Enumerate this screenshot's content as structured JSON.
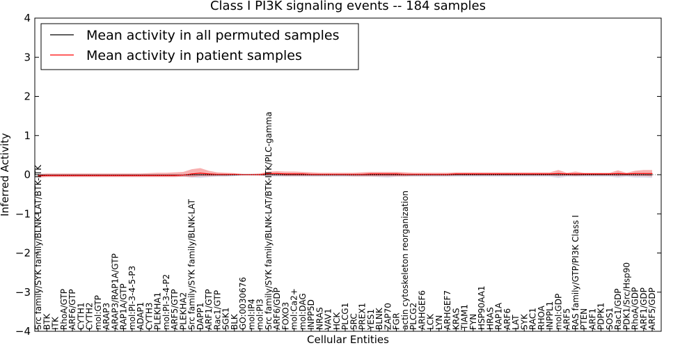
{
  "chart_data": {
    "type": "line",
    "title": "Class I PI3K signaling events -- 184 samples",
    "xlabel": "Cellular Entities",
    "ylabel": "Inferred Activity",
    "ylim": [
      -4,
      4
    ],
    "yticks": [
      "−4",
      "−3",
      "−2",
      "−1",
      "0",
      "1",
      "2",
      "3",
      "4"
    ],
    "legend": {
      "placement": "top-left",
      "entries": [
        {
          "label": "Mean activity in all permuted samples",
          "color": "#000000"
        },
        {
          "label": "Mean activity in patient samples",
          "color": "#ff0000"
        }
      ]
    },
    "categories": [
      "Src family/SYK family/BLNK-LAT/BTK-ITK",
      "BTK",
      "ITK",
      "RhoA/GTP",
      "ARF6/GTP",
      "CYTH1",
      "CYTH2",
      "mol:GTP",
      "ARAP3",
      "ARAP3/RAP1A/GTP",
      "RAP1A/GTP",
      "mol:PI-3-4-5-P3",
      "ADAP1",
      "CYTH3",
      "PLEKHA1",
      "mol:PI-3-4-P2",
      "ARF5/GTP",
      "PLEKHA2",
      "Src family/SYK family/BLNK-LAT",
      "DAPP1",
      "ARF1/GTP",
      "Rac1/GTP",
      "SGK1",
      "BLK",
      "GO:0030676",
      "mol:IP4",
      "mol:PI3",
      "Src family/SYK family/BLNK-LAT/BTK-ITK/PLC-gamma",
      "ARF6/GDP",
      "FOXO3",
      "mol:Ca2+",
      "mol:DAG",
      "INPP5D",
      "NRAS",
      "VAV1",
      "HCK",
      "PLCG1",
      "SRC",
      "PREX1",
      "YES1",
      "BLNK",
      "ZAP70",
      "FGR",
      "actin cytoskeleton reorganization",
      "PLCG2",
      "ARHGEF6",
      "LCK",
      "LYN",
      "ARHGEF7",
      "KRAS",
      "TIAM1",
      "FYN",
      "HSP90AA1",
      "HRAS",
      "RAP1A",
      "ARF6",
      "LAT",
      "SYK",
      "RAC1",
      "RHOA",
      "INPPL1",
      "mol:GDP",
      "ARF5",
      "RAS family/GTP/PI3K Class I",
      "PTEN",
      "ARF1",
      "PDPK1",
      "SOS1",
      "Rac1/GDP",
      "PDK1/Src/Hsp90",
      "RhoA/GDP",
      "ARF1/GDP",
      "ARF5/GDP"
    ],
    "series": [
      {
        "name": "Mean activity in patient samples",
        "color": "#ff0000",
        "values": [
          -0.03,
          -0.02,
          -0.02,
          -0.02,
          -0.02,
          -0.02,
          -0.02,
          -0.02,
          -0.02,
          -0.02,
          -0.02,
          -0.02,
          -0.02,
          -0.02,
          -0.02,
          -0.02,
          -0.02,
          -0.01,
          0.02,
          0.04,
          0.02,
          0.01,
          0.01,
          0.01,
          0.0,
          0.0,
          0.0,
          0.03,
          0.03,
          0.02,
          0.02,
          0.02,
          0.01,
          0.01,
          0.01,
          0.01,
          0.01,
          0.01,
          0.01,
          0.02,
          0.02,
          0.02,
          0.02,
          0.01,
          0.01,
          0.01,
          0.01,
          0.01,
          0.01,
          0.02,
          0.02,
          0.02,
          0.02,
          0.02,
          0.02,
          0.02,
          0.02,
          0.02,
          0.02,
          0.02,
          0.02,
          0.03,
          0.02,
          0.02,
          0.02,
          0.02,
          0.02,
          0.02,
          0.03,
          0.02,
          0.03,
          0.03,
          0.03
        ],
        "band_upper": [
          0.02,
          0.03,
          0.03,
          0.03,
          0.03,
          0.03,
          0.03,
          0.03,
          0.03,
          0.03,
          0.03,
          0.03,
          0.03,
          0.04,
          0.05,
          0.05,
          0.06,
          0.07,
          0.14,
          0.17,
          0.1,
          0.06,
          0.05,
          0.04,
          0.02,
          0.02,
          0.03,
          0.08,
          0.09,
          0.08,
          0.08,
          0.07,
          0.06,
          0.05,
          0.05,
          0.05,
          0.05,
          0.05,
          0.06,
          0.07,
          0.07,
          0.07,
          0.07,
          0.06,
          0.05,
          0.05,
          0.05,
          0.05,
          0.05,
          0.06,
          0.06,
          0.06,
          0.06,
          0.06,
          0.06,
          0.06,
          0.06,
          0.06,
          0.06,
          0.06,
          0.06,
          0.12,
          0.05,
          0.08,
          0.05,
          0.05,
          0.05,
          0.05,
          0.11,
          0.05,
          0.1,
          0.12,
          0.12
        ],
        "band_lower": [
          -0.07,
          -0.06,
          -0.06,
          -0.06,
          -0.06,
          -0.06,
          -0.06,
          -0.06,
          -0.06,
          -0.06,
          -0.06,
          -0.06,
          -0.06,
          -0.06,
          -0.06,
          -0.06,
          -0.06,
          -0.05,
          -0.06,
          -0.04,
          -0.04,
          -0.03,
          -0.03,
          -0.02,
          -0.01,
          -0.01,
          -0.02,
          -0.02,
          -0.02,
          -0.03,
          -0.03,
          -0.03,
          -0.03,
          -0.03,
          -0.03,
          -0.03,
          -0.03,
          -0.04,
          -0.04,
          -0.04,
          -0.04,
          -0.04,
          -0.04,
          -0.04,
          -0.03,
          -0.03,
          -0.03,
          -0.03,
          -0.03,
          -0.02,
          -0.02,
          -0.02,
          -0.02,
          -0.02,
          -0.02,
          -0.02,
          -0.02,
          -0.02,
          -0.02,
          -0.02,
          -0.02,
          -0.03,
          -0.02,
          -0.03,
          -0.02,
          -0.02,
          -0.02,
          -0.02,
          -0.03,
          -0.02,
          -0.03,
          -0.03,
          -0.04
        ]
      },
      {
        "name": "Mean activity in all permuted samples",
        "color": "#000000",
        "values": [
          -0.01,
          -0.01,
          -0.01,
          -0.01,
          -0.01,
          -0.01,
          -0.01,
          -0.01,
          -0.01,
          -0.01,
          -0.01,
          -0.01,
          -0.01,
          -0.01,
          -0.01,
          -0.01,
          -0.01,
          -0.01,
          0.0,
          0.0,
          0.0,
          0.0,
          0.0,
          0.0,
          0.0,
          0.0,
          0.0,
          0.0,
          0.0,
          0.0,
          0.0,
          0.0,
          0.0,
          0.0,
          0.0,
          0.0,
          0.0,
          0.0,
          0.0,
          0.0,
          0.0,
          0.0,
          0.0,
          0.0,
          0.0,
          0.0,
          0.0,
          0.0,
          0.0,
          0.0,
          0.0,
          0.0,
          0.0,
          0.0,
          0.0,
          0.0,
          0.0,
          0.0,
          0.0,
          0.0,
          0.0,
          0.0,
          0.0,
          0.0,
          0.0,
          0.0,
          0.0,
          0.0,
          0.0,
          0.0,
          0.0,
          0.0,
          0.0
        ],
        "band_upper": [
          0.02,
          0.02,
          0.02,
          0.02,
          0.02,
          0.02,
          0.02,
          0.02,
          0.02,
          0.02,
          0.02,
          0.02,
          0.02,
          0.02,
          0.02,
          0.02,
          0.02,
          0.02,
          0.02,
          0.02,
          0.02,
          0.02,
          0.02,
          0.02,
          0.02,
          0.02,
          0.02,
          0.02,
          0.02,
          0.02,
          0.02,
          0.02,
          0.02,
          0.02,
          0.02,
          0.02,
          0.02,
          0.02,
          0.02,
          0.02,
          0.02,
          0.02,
          0.02,
          0.02,
          0.02,
          0.02,
          0.02,
          0.02,
          0.02,
          0.02,
          0.02,
          0.02,
          0.02,
          0.02,
          0.02,
          0.02,
          0.02,
          0.02,
          0.02,
          0.02,
          0.02,
          0.02,
          0.02,
          0.02,
          0.02,
          0.02,
          0.02,
          0.02,
          0.02,
          0.02,
          0.02,
          0.02,
          0.02
        ],
        "band_lower": [
          -0.05,
          -0.05,
          -0.05,
          -0.05,
          -0.05,
          -0.05,
          -0.05,
          -0.05,
          -0.05,
          -0.05,
          -0.05,
          -0.05,
          -0.05,
          -0.05,
          -0.05,
          -0.05,
          -0.05,
          -0.05,
          -0.07,
          -0.08,
          -0.06,
          -0.05,
          -0.05,
          -0.04,
          -0.02,
          -0.02,
          -0.02,
          -0.05,
          -0.05,
          -0.05,
          -0.05,
          -0.05,
          -0.05,
          -0.05,
          -0.05,
          -0.05,
          -0.05,
          -0.05,
          -0.05,
          -0.05,
          -0.06,
          -0.07,
          -0.05,
          -0.05,
          -0.05,
          -0.05,
          -0.05,
          -0.05,
          -0.05,
          -0.05,
          -0.05,
          -0.05,
          -0.05,
          -0.05,
          -0.05,
          -0.05,
          -0.05,
          -0.05,
          -0.05,
          -0.05,
          -0.05,
          -0.08,
          -0.05,
          -0.05,
          -0.05,
          -0.05,
          -0.05,
          -0.05,
          -0.07,
          -0.05,
          -0.07,
          -0.07,
          -0.08
        ]
      }
    ]
  }
}
